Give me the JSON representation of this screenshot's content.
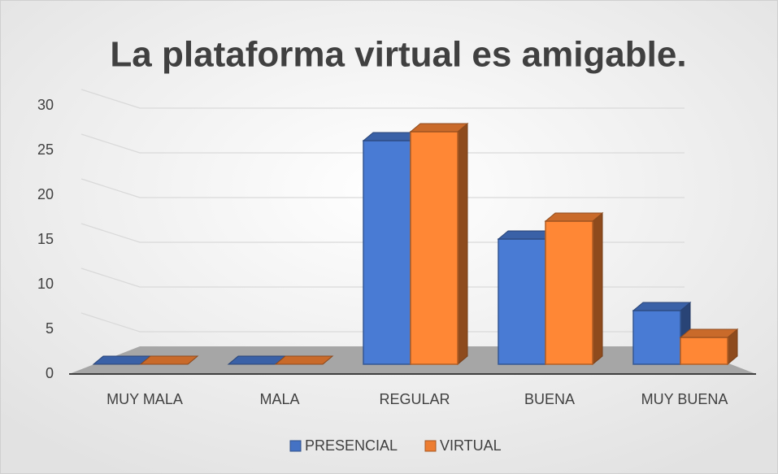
{
  "chart_data": {
    "type": "bar3d",
    "title": "La plataforma virtual es amigable.",
    "categories": [
      "MUY MALA",
      "MALA",
      "REGULAR",
      "BUENA",
      "MUY BUENA"
    ],
    "series": [
      {
        "name": "PRESENCIAL",
        "color": "#4472c4",
        "values": [
          0,
          0,
          25,
          14,
          6
        ]
      },
      {
        "name": "VIRTUAL",
        "color": "#ed7d31",
        "values": [
          0,
          0,
          26,
          16,
          3
        ]
      }
    ],
    "ylim": [
      0,
      30
    ],
    "yticks": [
      0,
      5,
      10,
      15,
      20,
      25,
      30
    ],
    "grid": true,
    "legend": "bottom"
  }
}
